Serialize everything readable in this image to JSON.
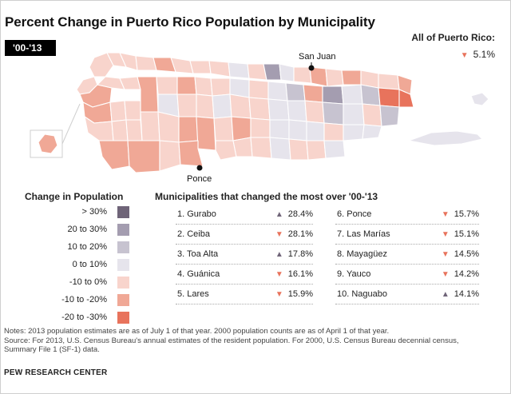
{
  "title": "Percent Change in Puerto Rico Population by Municipality",
  "period_tab": "'00-'13",
  "all_pr": {
    "label": "All of Puerto Rico:",
    "value": "5.1%",
    "direction": "down"
  },
  "map_labels": {
    "north_city": "San Juan",
    "south_city": "Ponce"
  },
  "legend": {
    "title": "Change in Population",
    "items": [
      {
        "label": "> 30%",
        "color": "#6f6478"
      },
      {
        "label": "20 to 30%",
        "color": "#a49db0"
      },
      {
        "label": "10 to 20%",
        "color": "#c7c3d0"
      },
      {
        "label": "0 to 10%",
        "color": "#e6e4ec"
      },
      {
        "label": "-10 to 0%",
        "color": "#f8d4cc"
      },
      {
        "label": "-10 to -20%",
        "color": "#f0a896"
      },
      {
        "label": "-20 to -30%",
        "color": "#e8735c"
      }
    ]
  },
  "table": {
    "title": "Municipalities that changed the most over '00-'13",
    "rows": [
      {
        "rank": "1. Gurabo",
        "value": "28.4%",
        "direction": "up"
      },
      {
        "rank": "2. Ceiba",
        "value": "28.1%",
        "direction": "down"
      },
      {
        "rank": "3. Toa Alta",
        "value": "17.8%",
        "direction": "up"
      },
      {
        "rank": "4. Guánica",
        "value": "16.1%",
        "direction": "down"
      },
      {
        "rank": "5. Lares",
        "value": "15.9%",
        "direction": "down"
      },
      {
        "rank": "6. Ponce",
        "value": "15.7%",
        "direction": "down"
      },
      {
        "rank": "7. Las Marías",
        "value": "15.1%",
        "direction": "down"
      },
      {
        "rank": "8. Mayagüez",
        "value": "14.5%",
        "direction": "down"
      },
      {
        "rank": "9. Yauco",
        "value": "14.2%",
        "direction": "down"
      },
      {
        "rank": "10. Naguabo",
        "value": "14.1%",
        "direction": "up"
      }
    ]
  },
  "notes": [
    "Notes: 2013 population estimates are as of July 1 of that year. 2000 population counts are as of April 1 of that year.",
    "Source: For 2013, U.S. Census Bureau's annual estimates of the resident population. For 2000, U.S. Census Bureau decennial census,",
    "Summary File 1 (SF-1) data."
  ],
  "credit": "PEW RESEARCH CENTER"
}
